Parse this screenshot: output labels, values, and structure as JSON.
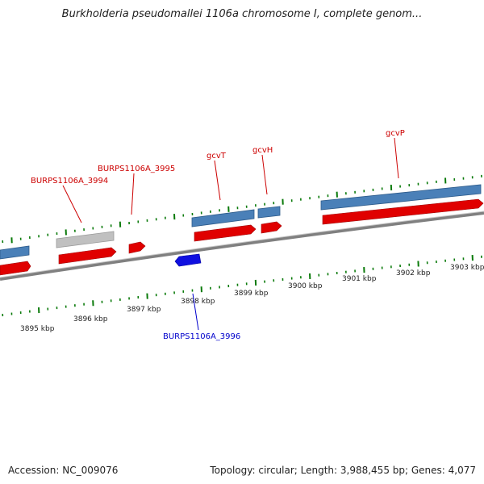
{
  "title": "Burkholderia pseudomallei 1106a chromosome I, complete genom...",
  "accession_label": "Accession: NC_009076",
  "summary": "Topology: circular; Length: 3,988,455 bp; Genes: 4,077",
  "colors": {
    "forward_gene": "#e00000",
    "reverse_gene": "#1010e0",
    "cds_block": "#4a80b8",
    "pseudo_block": "#c0c0c0",
    "tick": "#0a7a0a",
    "backbone": "#808080",
    "label_forward": "#cc0000",
    "label_reverse": "#0000cc"
  },
  "ruler_labels": [
    "3895 kbp",
    "3896 kbp",
    "3897 kbp",
    "3898 kbp",
    "3899 kbp",
    "3900 kbp",
    "3901 kbp",
    "3902 kbp",
    "3903 kbp"
  ],
  "gene_labels": [
    {
      "id": "g3994",
      "text": "BURPS1106A_3994",
      "strand": "forward"
    },
    {
      "id": "g3995",
      "text": "BURPS1106A_3995",
      "strand": "forward"
    },
    {
      "id": "gcvT",
      "text": "gcvT",
      "strand": "forward"
    },
    {
      "id": "gcvH",
      "text": "gcvH",
      "strand": "forward"
    },
    {
      "id": "gcvP",
      "text": "gcvP",
      "strand": "forward"
    },
    {
      "id": "g3996",
      "text": "BURPS1106A_3996",
      "strand": "reverse"
    }
  ]
}
